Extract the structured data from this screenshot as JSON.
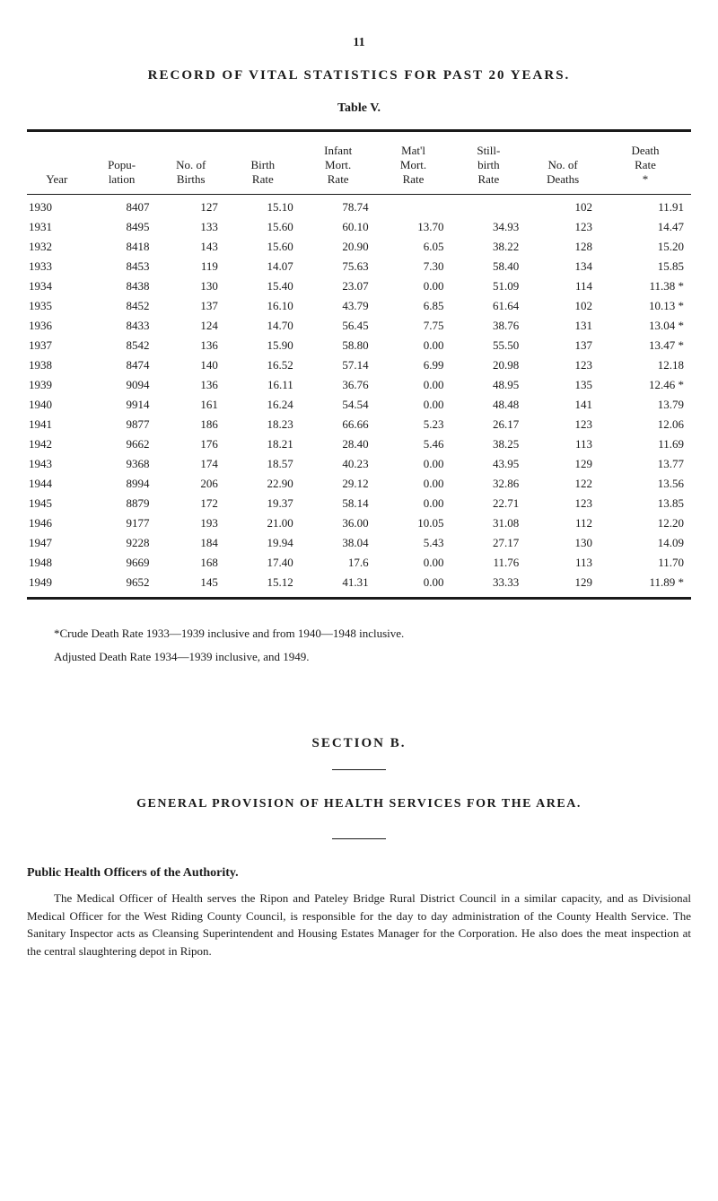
{
  "page_number": "11",
  "main_title": "RECORD OF VITAL STATISTICS FOR PAST 20 YEARS.",
  "table_label": "Table V.",
  "table": {
    "columns": [
      {
        "key": "year",
        "label": "Year"
      },
      {
        "key": "population",
        "label_line1": "Popu-",
        "label_line2": "lation"
      },
      {
        "key": "births",
        "label_line1": "No. of",
        "label_line2": "Births"
      },
      {
        "key": "birth_rate",
        "label_line1": "Birth",
        "label_line2": "Rate"
      },
      {
        "key": "infant_mort",
        "label_line1": "Infant",
        "label_line2": "Mort.",
        "label_line3": "Rate"
      },
      {
        "key": "matl_mort",
        "label_line1": "Mat'l",
        "label_line2": "Mort.",
        "label_line3": "Rate"
      },
      {
        "key": "still_birth",
        "label_line1": "Still-",
        "label_line2": "birth",
        "label_line3": "Rate"
      },
      {
        "key": "deaths",
        "label_line1": "No. of",
        "label_line2": "Deaths"
      },
      {
        "key": "death_rate",
        "label_line1": "Death",
        "label_line2": "Rate",
        "label_line3": "*"
      }
    ],
    "rows": [
      {
        "year": "1930",
        "population": "8407",
        "births": "127",
        "birth_rate": "15.10",
        "infant_mort": "78.74",
        "matl_mort": "",
        "still_birth": "",
        "deaths": "102",
        "death_rate": "11.91"
      },
      {
        "year": "1931",
        "population": "8495",
        "births": "133",
        "birth_rate": "15.60",
        "infant_mort": "60.10",
        "matl_mort": "13.70",
        "still_birth": "34.93",
        "deaths": "123",
        "death_rate": "14.47"
      },
      {
        "year": "1932",
        "population": "8418",
        "births": "143",
        "birth_rate": "15.60",
        "infant_mort": "20.90",
        "matl_mort": "6.05",
        "still_birth": "38.22",
        "deaths": "128",
        "death_rate": "15.20"
      },
      {
        "year": "1933",
        "population": "8453",
        "births": "119",
        "birth_rate": "14.07",
        "infant_mort": "75.63",
        "matl_mort": "7.30",
        "still_birth": "58.40",
        "deaths": "134",
        "death_rate": "15.85"
      },
      {
        "year": "1934",
        "population": "8438",
        "births": "130",
        "birth_rate": "15.40",
        "infant_mort": "23.07",
        "matl_mort": "0.00",
        "still_birth": "51.09",
        "deaths": "114",
        "death_rate": "11.38 *"
      },
      {
        "year": "1935",
        "population": "8452",
        "births": "137",
        "birth_rate": "16.10",
        "infant_mort": "43.79",
        "matl_mort": "6.85",
        "still_birth": "61.64",
        "deaths": "102",
        "death_rate": "10.13 *"
      },
      {
        "year": "1936",
        "population": "8433",
        "births": "124",
        "birth_rate": "14.70",
        "infant_mort": "56.45",
        "matl_mort": "7.75",
        "still_birth": "38.76",
        "deaths": "131",
        "death_rate": "13.04 *"
      },
      {
        "year": "1937",
        "population": "8542",
        "births": "136",
        "birth_rate": "15.90",
        "infant_mort": "58.80",
        "matl_mort": "0.00",
        "still_birth": "55.50",
        "deaths": "137",
        "death_rate": "13.47 *"
      },
      {
        "year": "1938",
        "population": "8474",
        "births": "140",
        "birth_rate": "16.52",
        "infant_mort": "57.14",
        "matl_mort": "6.99",
        "still_birth": "20.98",
        "deaths": "123",
        "death_rate": "12.18"
      },
      {
        "year": "1939",
        "population": "9094",
        "births": "136",
        "birth_rate": "16.11",
        "infant_mort": "36.76",
        "matl_mort": "0.00",
        "still_birth": "48.95",
        "deaths": "135",
        "death_rate": "12.46 *"
      },
      {
        "year": "1940",
        "population": "9914",
        "births": "161",
        "birth_rate": "16.24",
        "infant_mort": "54.54",
        "matl_mort": "0.00",
        "still_birth": "48.48",
        "deaths": "141",
        "death_rate": "13.79"
      },
      {
        "year": "1941",
        "population": "9877",
        "births": "186",
        "birth_rate": "18.23",
        "infant_mort": "66.66",
        "matl_mort": "5.23",
        "still_birth": "26.17",
        "deaths": "123",
        "death_rate": "12.06"
      },
      {
        "year": "1942",
        "population": "9662",
        "births": "176",
        "birth_rate": "18.21",
        "infant_mort": "28.40",
        "matl_mort": "5.46",
        "still_birth": "38.25",
        "deaths": "113",
        "death_rate": "11.69"
      },
      {
        "year": "1943",
        "population": "9368",
        "births": "174",
        "birth_rate": "18.57",
        "infant_mort": "40.23",
        "matl_mort": "0.00",
        "still_birth": "43.95",
        "deaths": "129",
        "death_rate": "13.77"
      },
      {
        "year": "1944",
        "population": "8994",
        "births": "206",
        "birth_rate": "22.90",
        "infant_mort": "29.12",
        "matl_mort": "0.00",
        "still_birth": "32.86",
        "deaths": "122",
        "death_rate": "13.56"
      },
      {
        "year": "1945",
        "population": "8879",
        "births": "172",
        "birth_rate": "19.37",
        "infant_mort": "58.14",
        "matl_mort": "0.00",
        "still_birth": "22.71",
        "deaths": "123",
        "death_rate": "13.85"
      },
      {
        "year": "1946",
        "population": "9177",
        "births": "193",
        "birth_rate": "21.00",
        "infant_mort": "36.00",
        "matl_mort": "10.05",
        "still_birth": "31.08",
        "deaths": "112",
        "death_rate": "12.20"
      },
      {
        "year": "1947",
        "population": "9228",
        "births": "184",
        "birth_rate": "19.94",
        "infant_mort": "38.04",
        "matl_mort": "5.43",
        "still_birth": "27.17",
        "deaths": "130",
        "death_rate": "14.09"
      },
      {
        "year": "1948",
        "population": "9669",
        "births": "168",
        "birth_rate": "17.40",
        "infant_mort": "17.6",
        "matl_mort": "0.00",
        "still_birth": "11.76",
        "deaths": "113",
        "death_rate": "11.70"
      },
      {
        "year": "1949",
        "population": "9652",
        "births": "145",
        "birth_rate": "15.12",
        "infant_mort": "41.31",
        "matl_mort": "0.00",
        "still_birth": "33.33",
        "deaths": "129",
        "death_rate": "11.89 *"
      }
    ]
  },
  "footnote": "*Crude Death Rate 1933—1939 inclusive and from 1940—1948 inclusive.",
  "adjusted_note": "Adjusted Death Rate 1934—1939 inclusive, and 1949.",
  "section_title": "SECTION B.",
  "section_heading": "GENERAL PROVISION OF HEALTH SERVICES FOR THE AREA.",
  "subsection_title": "Public Health Officers of the Authority.",
  "body_text": "The Medical Officer of Health serves the Ripon and Pateley Bridge Rural District Council in a similar capacity, and as Divisional Medical Officer for the West Riding County Council, is responsible for the day to day administration of the County Health Service. The Sanitary Inspector acts as Cleansing Superintendent and Housing Estates Manager for the Corporation. He also does the meat inspection at the central slaughtering depot in Ripon."
}
